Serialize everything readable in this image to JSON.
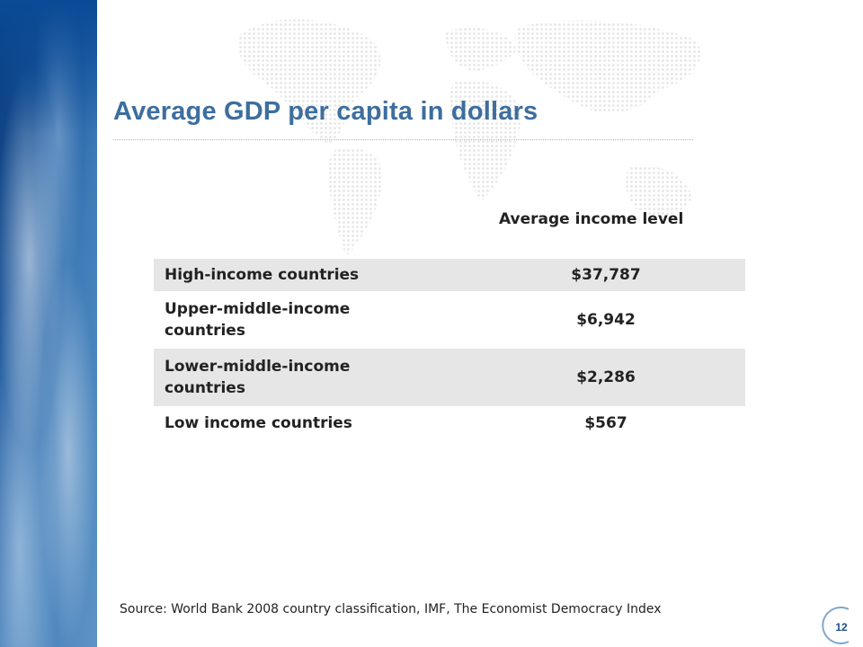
{
  "slide": {
    "title": "Average GDP per capita in dollars",
    "column_header": "Average income level",
    "rows": [
      {
        "label": "High-income countries",
        "value": "$37,787"
      },
      {
        "label": "Upper-middle-income countries",
        "value": "$6,942"
      },
      {
        "label": "Lower-middle-income countries",
        "value": "$2,286"
      },
      {
        "label": "Low income countries",
        "value": "$567"
      }
    ],
    "source": "Source: World Bank 2008 country classification, IMF, The Economist Democracy Index",
    "page_number": "12"
  },
  "colors": {
    "title": "#3d6e9e",
    "row_shade": "#e6e6e6",
    "page_number": "#1d4f86"
  }
}
